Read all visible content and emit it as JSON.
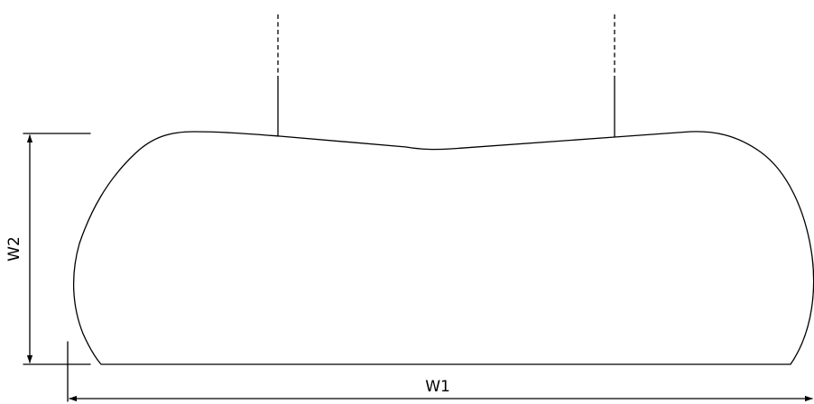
{
  "diagram": {
    "labels": {
      "w1": "W1",
      "w2": "W2"
    },
    "colors": {
      "line": "#000000",
      "background": "#ffffff"
    }
  }
}
